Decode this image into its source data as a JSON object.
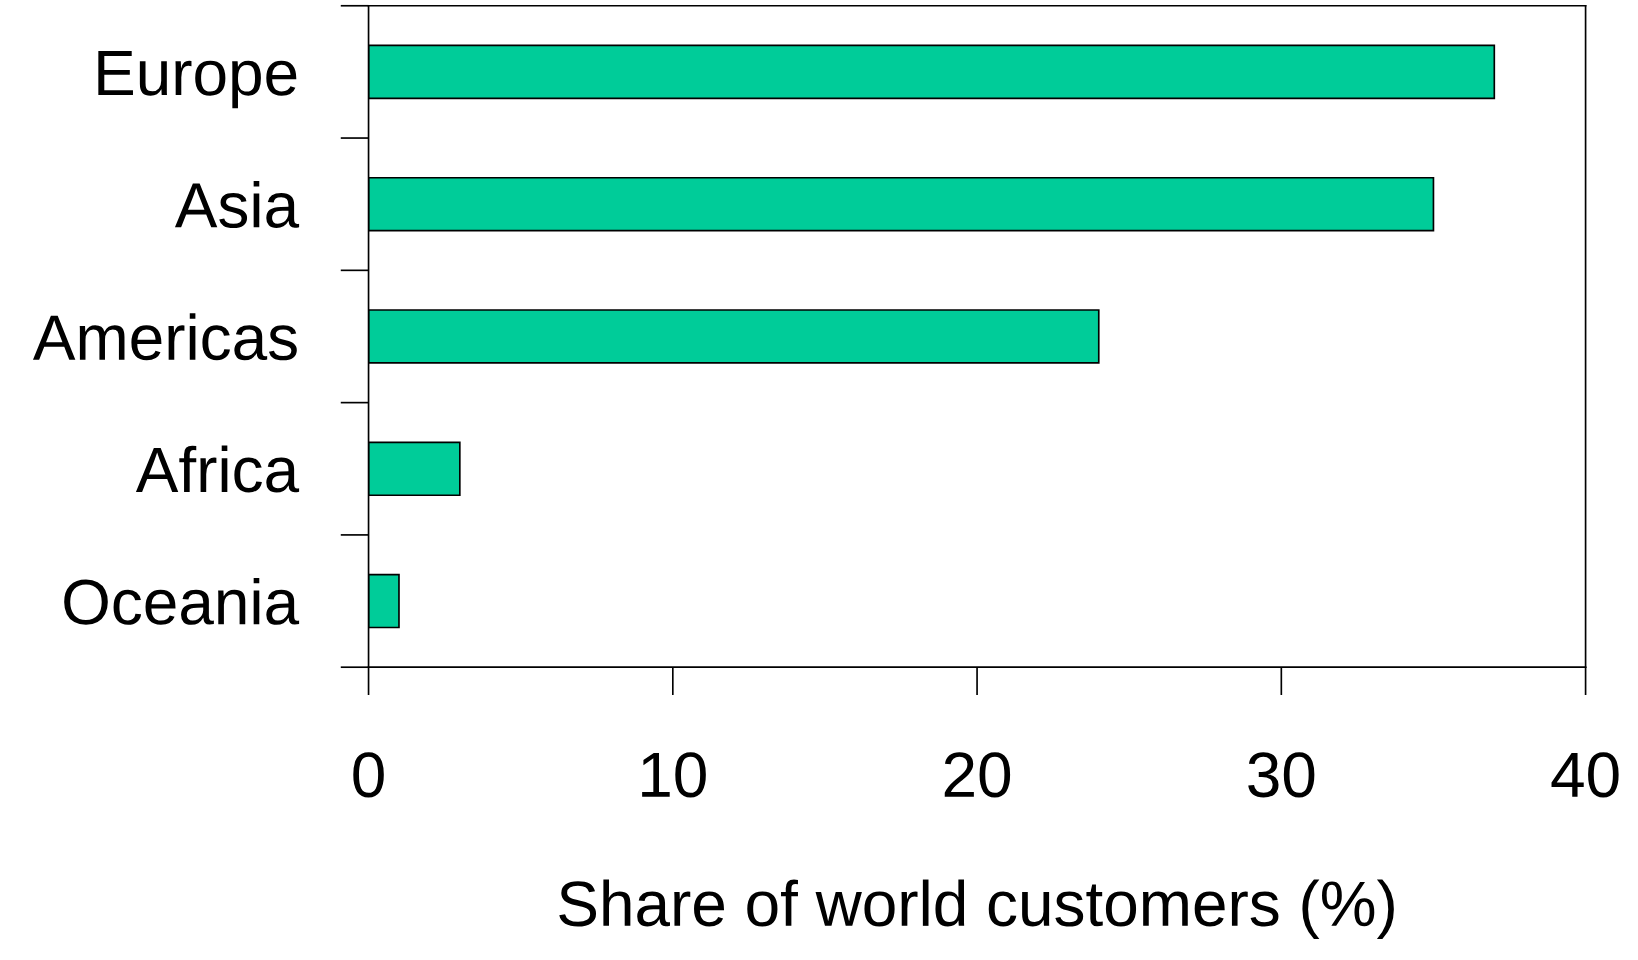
{
  "chart_data": {
    "type": "bar",
    "orientation": "horizontal",
    "xlabel": "Share of world customers (%)",
    "categories": [
      "Europe",
      "Asia",
      "Americas",
      "Africa",
      "Oceania"
    ],
    "values": [
      37,
      35,
      24,
      3,
      1
    ],
    "color": "#00cc99",
    "xlim": [
      0,
      40
    ],
    "xticks": [
      0,
      10,
      20,
      30,
      40
    ],
    "grid": false,
    "legend": false
  }
}
